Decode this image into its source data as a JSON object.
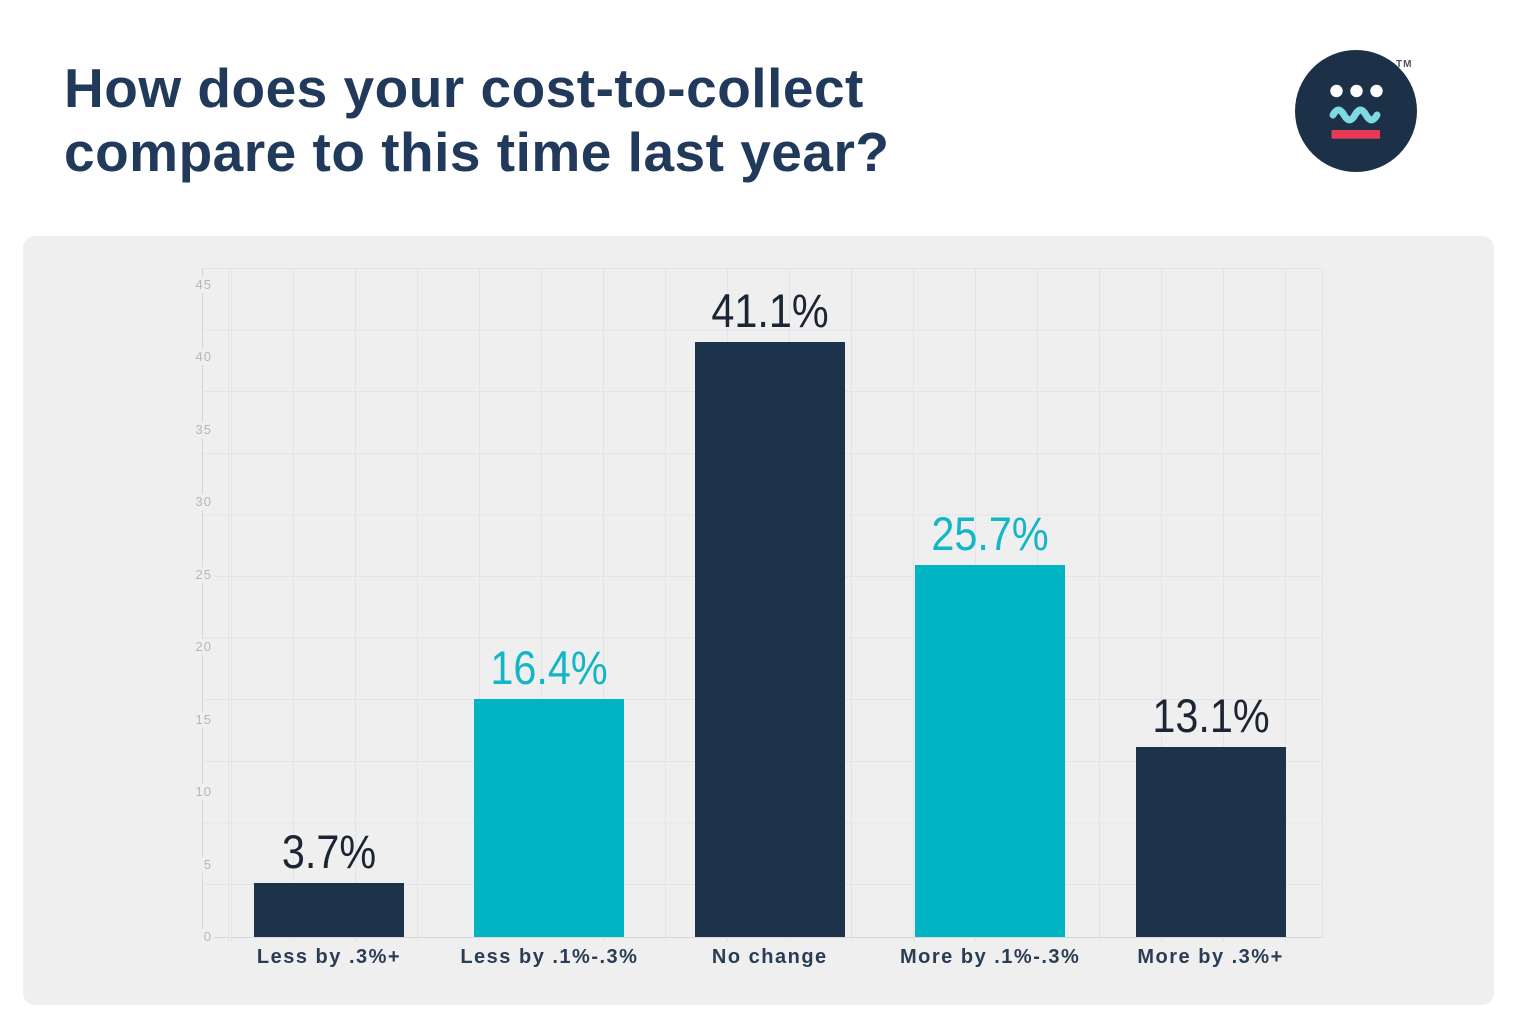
{
  "header": {
    "title_lines": [
      "How does your cost-to-collect",
      "compare to this time last year?"
    ],
    "trademark": "TM"
  },
  "logo": {
    "name": "face-logo",
    "circle_color": "#1c3048",
    "dots_color": "#ffffff",
    "wave_color": "#7fd9e0",
    "bar_color": "#e63a56"
  },
  "panel": {
    "background": "#efefef"
  },
  "chart_data": {
    "type": "bar",
    "title": "How does your cost-to-collect compare to this time last year?",
    "categories": [
      "Less by .3%+",
      "Less by .1%-.3%",
      "No change",
      "More by .1%-.3%",
      "More by .3%+"
    ],
    "values": [
      3.7,
      16.4,
      41.1,
      25.7,
      13.1
    ],
    "value_labels": [
      "3.7%",
      "16.4%",
      "41.1%",
      "25.7%",
      "13.1%"
    ],
    "bar_colors": [
      "#1d324b",
      "#00b4c3",
      "#1d324b",
      "#00b4c3",
      "#1d324b"
    ],
    "value_label_colors": [
      "#1c2533",
      "#12b6c6",
      "#1c2533",
      "#12b6c6",
      "#1c2533"
    ],
    "xlabel": "",
    "ylabel": "",
    "ylim": [
      0,
      45
    ],
    "yticks": [
      0,
      5,
      10,
      15,
      20,
      25,
      30,
      35,
      40,
      45
    ],
    "grid": "square decorative grid, light gray",
    "legend_position": "none"
  }
}
